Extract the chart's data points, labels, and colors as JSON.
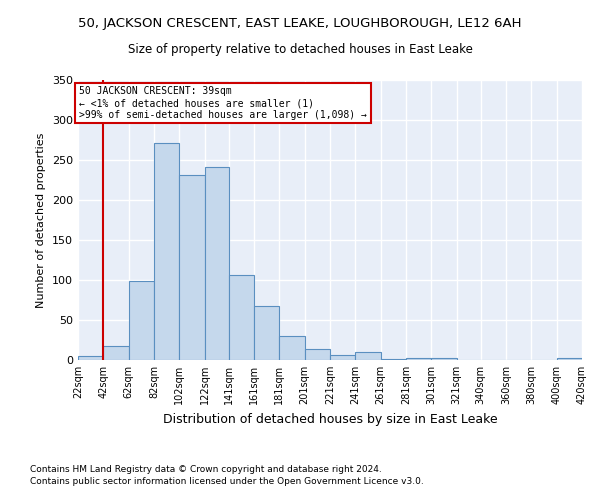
{
  "title1": "50, JACKSON CRESCENT, EAST LEAKE, LOUGHBOROUGH, LE12 6AH",
  "title2": "Size of property relative to detached houses in East Leake",
  "xlabel": "Distribution of detached houses by size in East Leake",
  "ylabel": "Number of detached properties",
  "bar_edges": [
    22,
    42,
    62,
    82,
    102,
    122,
    141,
    161,
    181,
    201,
    221,
    241,
    261,
    281,
    301,
    321,
    340,
    360,
    380,
    400,
    420
  ],
  "bar_heights": [
    5,
    18,
    99,
    271,
    231,
    241,
    106,
    68,
    30,
    14,
    6,
    10,
    1,
    3,
    2,
    0,
    0,
    0,
    0,
    2
  ],
  "bar_color": "#c5d8ec",
  "bar_edge_color": "#5a8fc0",
  "bg_color": "#e8eef8",
  "grid_color": "#ffffff",
  "property_line_x": 42,
  "property_line_color": "#cc0000",
  "annotation_text": "50 JACKSON CRESCENT: 39sqm\n← <1% of detached houses are smaller (1)\n>99% of semi-detached houses are larger (1,098) →",
  "annotation_box_color": "#cc0000",
  "ylim": [
    0,
    350
  ],
  "yticks": [
    0,
    50,
    100,
    150,
    200,
    250,
    300,
    350
  ],
  "tick_labels": [
    "22sqm",
    "42sqm",
    "62sqm",
    "82sqm",
    "102sqm",
    "122sqm",
    "141sqm",
    "161sqm",
    "181sqm",
    "201sqm",
    "221sqm",
    "241sqm",
    "261sqm",
    "281sqm",
    "301sqm",
    "321sqm",
    "340sqm",
    "360sqm",
    "380sqm",
    "400sqm",
    "420sqm"
  ],
  "footer1": "Contains HM Land Registry data © Crown copyright and database right 2024.",
  "footer2": "Contains public sector information licensed under the Open Government Licence v3.0."
}
